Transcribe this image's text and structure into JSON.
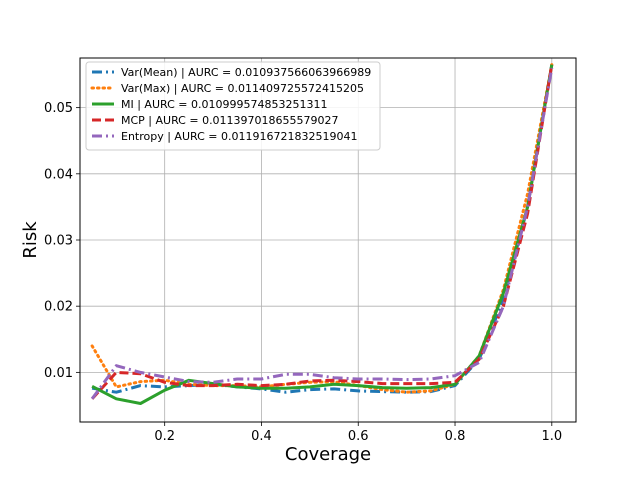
{
  "chart_data": {
    "type": "line",
    "title": "",
    "xlabel": "Coverage",
    "ylabel": "Risk",
    "xlim": [
      0.025,
      1.05
    ],
    "ylim": [
      0.0025,
      0.0575
    ],
    "grid": true,
    "legend_position": "top-left",
    "x_ticks": [
      0.2,
      0.4,
      0.6,
      0.8,
      1.0
    ],
    "x_tick_labels": [
      "0.2",
      "0.4",
      "0.6",
      "0.8",
      "1.0"
    ],
    "y_ticks": [
      0.01,
      0.02,
      0.03,
      0.04,
      0.05
    ],
    "y_tick_labels": [
      "0.01",
      "0.02",
      "0.03",
      "0.04",
      "0.05"
    ],
    "x": [
      0.05,
      0.1,
      0.15,
      0.2,
      0.25,
      0.3,
      0.35,
      0.4,
      0.45,
      0.5,
      0.55,
      0.6,
      0.65,
      0.7,
      0.75,
      0.8,
      0.85,
      0.9,
      0.95,
      1.0
    ],
    "series": [
      {
        "name": "Var(Mean) | AURC = 0.010937566063966989",
        "color": "#1f77b4",
        "dash": "dashdot",
        "values": [
          0.0076,
          0.007,
          0.008,
          0.0078,
          0.008,
          0.0082,
          0.0078,
          0.0075,
          0.007,
          0.0074,
          0.0075,
          0.0072,
          0.0071,
          0.007,
          0.0071,
          0.008,
          0.012,
          0.021,
          0.035,
          0.0565
        ]
      },
      {
        "name": "Var(Max) | AURC = 0.011409725572415205",
        "color": "#ff7f0e",
        "dash": "dotted",
        "values": [
          0.014,
          0.0078,
          0.0086,
          0.0088,
          0.0082,
          0.008,
          0.008,
          0.0078,
          0.0082,
          0.0085,
          0.0086,
          0.008,
          0.0074,
          0.007,
          0.0072,
          0.0082,
          0.0125,
          0.0225,
          0.037,
          0.0565
        ]
      },
      {
        "name": "MI | AURC = 0.010999574853251311",
        "color": "#2ca02c",
        "dash": "solid",
        "values": [
          0.0079,
          0.006,
          0.0053,
          0.0073,
          0.0088,
          0.0083,
          0.0078,
          0.0076,
          0.0076,
          0.0078,
          0.0082,
          0.008,
          0.0077,
          0.0076,
          0.0077,
          0.0082,
          0.0125,
          0.022,
          0.035,
          0.0565
        ]
      },
      {
        "name": "MCP | AURC = 0.011397018655579027",
        "color": "#d62728",
        "dash": "dashed",
        "values": [
          0.006,
          0.01,
          0.0098,
          0.0085,
          0.008,
          0.008,
          0.0082,
          0.008,
          0.0082,
          0.0087,
          0.0088,
          0.0086,
          0.0083,
          0.0083,
          0.0083,
          0.0085,
          0.012,
          0.02,
          0.034,
          0.0565
        ]
      },
      {
        "name": "Entropy | AURC = 0.011916721832519041",
        "color": "#9467bd",
        "dash": "dashdot",
        "values": [
          0.006,
          0.011,
          0.01,
          0.0093,
          0.0086,
          0.0085,
          0.009,
          0.009,
          0.0097,
          0.0097,
          0.0092,
          0.009,
          0.009,
          0.0089,
          0.009,
          0.0095,
          0.0115,
          0.02,
          0.035,
          0.056
        ]
      }
    ]
  }
}
